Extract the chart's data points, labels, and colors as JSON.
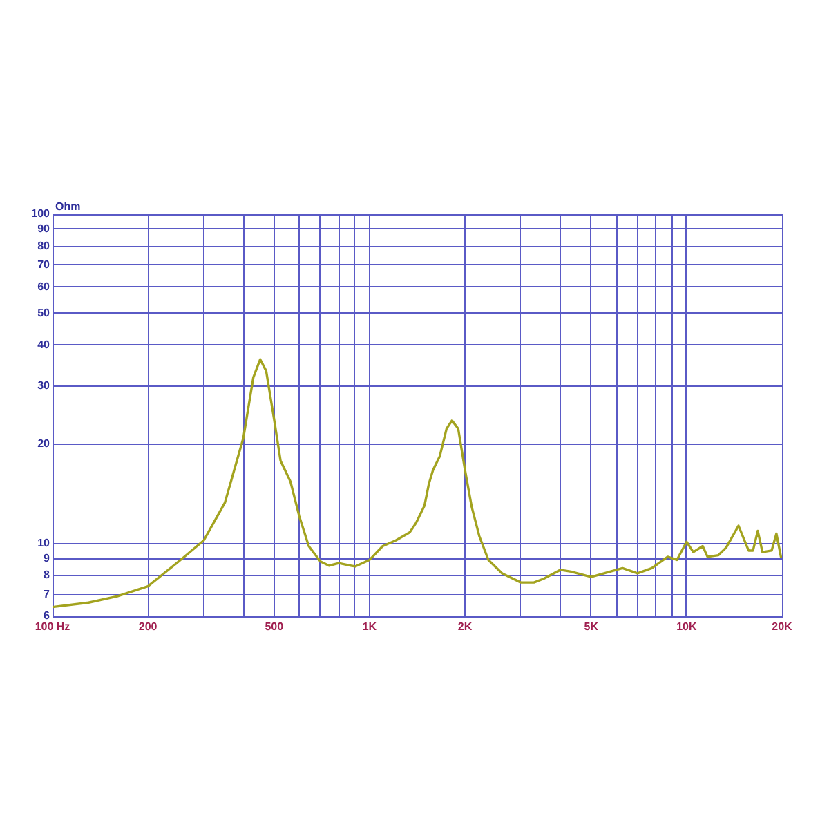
{
  "chart_data": {
    "type": "line",
    "ylabel": "Ohm",
    "x": [
      100,
      130,
      160,
      200,
      250,
      300,
      350,
      400,
      430,
      452,
      472,
      500,
      524,
      563,
      600,
      643,
      700,
      745,
      800,
      900,
      1000,
      1100,
      1210,
      1340,
      1400,
      1490,
      1540,
      1586,
      1666,
      1750,
      1820,
      1904,
      2000,
      2100,
      2220,
      2370,
      2620,
      3000,
      3300,
      3540,
      4000,
      4320,
      5000,
      5490,
      6280,
      7000,
      7770,
      8720,
      9320,
      10000,
      10500,
      11240,
      11640,
      12600,
      13330,
      14580,
      15690,
      16200,
      16770,
      17350,
      18550,
      19200,
      19840
    ],
    "series": [
      {
        "color": "#a3a31f",
        "values": [
          6.4,
          6.6,
          6.9,
          7.4,
          8.8,
          10.2,
          13.3,
          20.9,
          31.9,
          36.2,
          33.4,
          23.8,
          17.8,
          15.4,
          12.1,
          9.8,
          8.8,
          8.55,
          8.7,
          8.5,
          8.9,
          9.8,
          10.2,
          10.8,
          11.5,
          13.0,
          15.2,
          16.7,
          18.4,
          22.3,
          23.6,
          22.3,
          16.7,
          12.9,
          10.5,
          8.9,
          8.1,
          7.6,
          7.6,
          7.8,
          8.3,
          8.2,
          7.9,
          8.1,
          8.4,
          8.1,
          8.4,
          9.1,
          8.9,
          10.1,
          9.4,
          9.8,
          9.1,
          9.2,
          9.7,
          11.3,
          9.5,
          9.5,
          10.9,
          9.4,
          9.5,
          10.7,
          9.1
        ]
      }
    ],
    "log": "xy",
    "xlim": [
      100,
      20000
    ],
    "ylim": [
      6,
      100
    ],
    "xticks": [
      {
        "value": 100,
        "label": "100 Hz"
      },
      200,
      {
        "value": 300,
        "label": null
      },
      {
        "value": 400,
        "label": null
      },
      500,
      {
        "value": 600,
        "label": null
      },
      {
        "value": 700,
        "label": null
      },
      {
        "value": 800,
        "label": null
      },
      {
        "value": 900,
        "label": null
      },
      {
        "value": 1000,
        "label": "1K"
      },
      {
        "value": 2000,
        "label": "2K"
      },
      {
        "value": 3000,
        "label": null
      },
      {
        "value": 4000,
        "label": null
      },
      {
        "value": 5000,
        "label": "5K"
      },
      {
        "value": 6000,
        "label": null
      },
      {
        "value": 7000,
        "label": null
      },
      {
        "value": 8000,
        "label": null
      },
      {
        "value": 9000,
        "label": null
      },
      {
        "value": 10000,
        "label": "10K"
      },
      {
        "value": 20000,
        "label": "20K"
      }
    ],
    "yticks": [
      6,
      7,
      8,
      9,
      10,
      20,
      30,
      40,
      50,
      60,
      70,
      80,
      90,
      100
    ],
    "grid": true,
    "legend": false
  }
}
